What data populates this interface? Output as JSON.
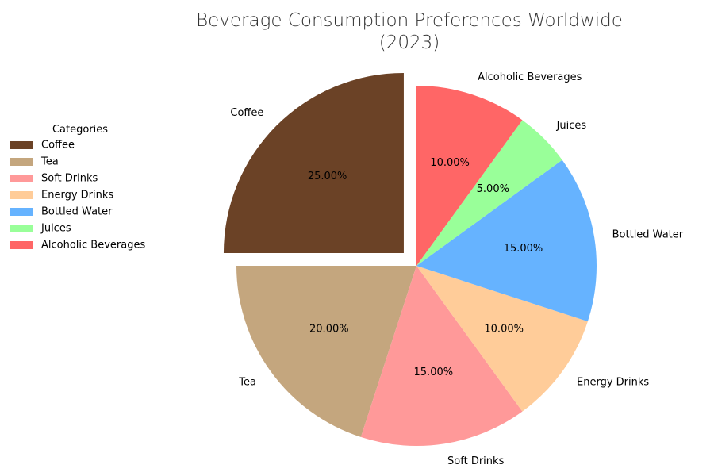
{
  "chart_data": {
    "type": "pie",
    "title_lines": [
      "Beverage Consumption Preferences Worldwide",
      "(2023)"
    ],
    "legend_title": "Categories",
    "legend_position": "left",
    "start_angle_deg": 90,
    "direction": "counterclockwise",
    "slices": [
      {
        "label": "Coffee",
        "value": 25,
        "pct_text": "25.00%",
        "color": "#6b4226",
        "explode": 0.1
      },
      {
        "label": "Tea",
        "value": 20,
        "pct_text": "20.00%",
        "color": "#c4a67e",
        "explode": 0
      },
      {
        "label": "Soft Drinks",
        "value": 15,
        "pct_text": "15.00%",
        "color": "#ff9999",
        "explode": 0
      },
      {
        "label": "Energy Drinks",
        "value": 10,
        "pct_text": "10.00%",
        "color": "#ffcc99",
        "explode": 0
      },
      {
        "label": "Bottled Water",
        "value": 15,
        "pct_text": "15.00%",
        "color": "#66b3ff",
        "explode": 0
      },
      {
        "label": "Juices",
        "value": 5,
        "pct_text": "5.00%",
        "color": "#99ff99",
        "explode": 0
      },
      {
        "label": "Alcoholic Beverages",
        "value": 10,
        "pct_text": "10.00%",
        "color": "#ff6666",
        "explode": 0
      }
    ]
  }
}
